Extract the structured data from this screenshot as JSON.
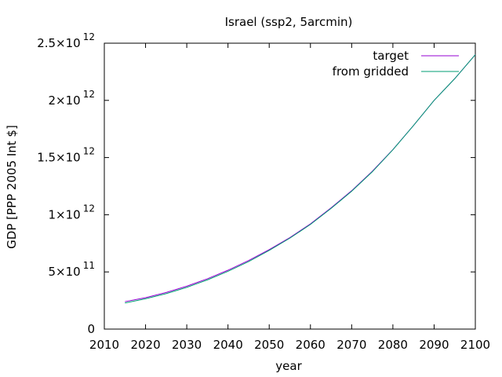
{
  "chart_data": {
    "type": "line",
    "title": "Israel (ssp2, 5arcmin)",
    "xlabel": "year",
    "ylabel": "GDP [PPP 2005 Int $]",
    "xlim": [
      2010,
      2100
    ],
    "ylim": [
      0,
      2500000000000
    ],
    "x_ticks": [
      2010,
      2020,
      2030,
      2040,
      2050,
      2060,
      2070,
      2080,
      2090,
      2100
    ],
    "y_ticks": [
      {
        "value": 0,
        "mantissa": "0",
        "exponent": ""
      },
      {
        "value": 500000000000,
        "mantissa": "5×10",
        "exponent": "11"
      },
      {
        "value": 1000000000000,
        "mantissa": "1×10",
        "exponent": "12"
      },
      {
        "value": 1500000000000,
        "mantissa": "1.5×10",
        "exponent": "12"
      },
      {
        "value": 2000000000000,
        "mantissa": "2×10",
        "exponent": "12"
      },
      {
        "value": 2500000000000,
        "mantissa": "2.5×10",
        "exponent": "12"
      }
    ],
    "grid": false,
    "legend_position": "top-right",
    "x": [
      2015,
      2020,
      2025,
      2030,
      2035,
      2040,
      2045,
      2050,
      2055,
      2060,
      2065,
      2070,
      2075,
      2080,
      2085,
      2090,
      2095,
      2100
    ],
    "series": [
      {
        "name": "target",
        "color": "#9400d3",
        "values": [
          240000000000,
          275000000000,
          320000000000,
          375000000000,
          440000000000,
          515000000000,
          600000000000,
          695000000000,
          800000000000,
          920000000000,
          1060000000000,
          1210000000000,
          1380000000000,
          1570000000000,
          1780000000000,
          2000000000000,
          2190000000000,
          2400000000000
        ]
      },
      {
        "name": "from gridded",
        "color": "#009e73",
        "values": [
          228000000000,
          265000000000,
          310000000000,
          365000000000,
          430000000000,
          505000000000,
          590000000000,
          688000000000,
          795000000000,
          915000000000,
          1055000000000,
          1205000000000,
          1375000000000,
          1568000000000,
          1780000000000,
          2000000000000,
          2190000000000,
          2400000000000
        ]
      }
    ]
  }
}
